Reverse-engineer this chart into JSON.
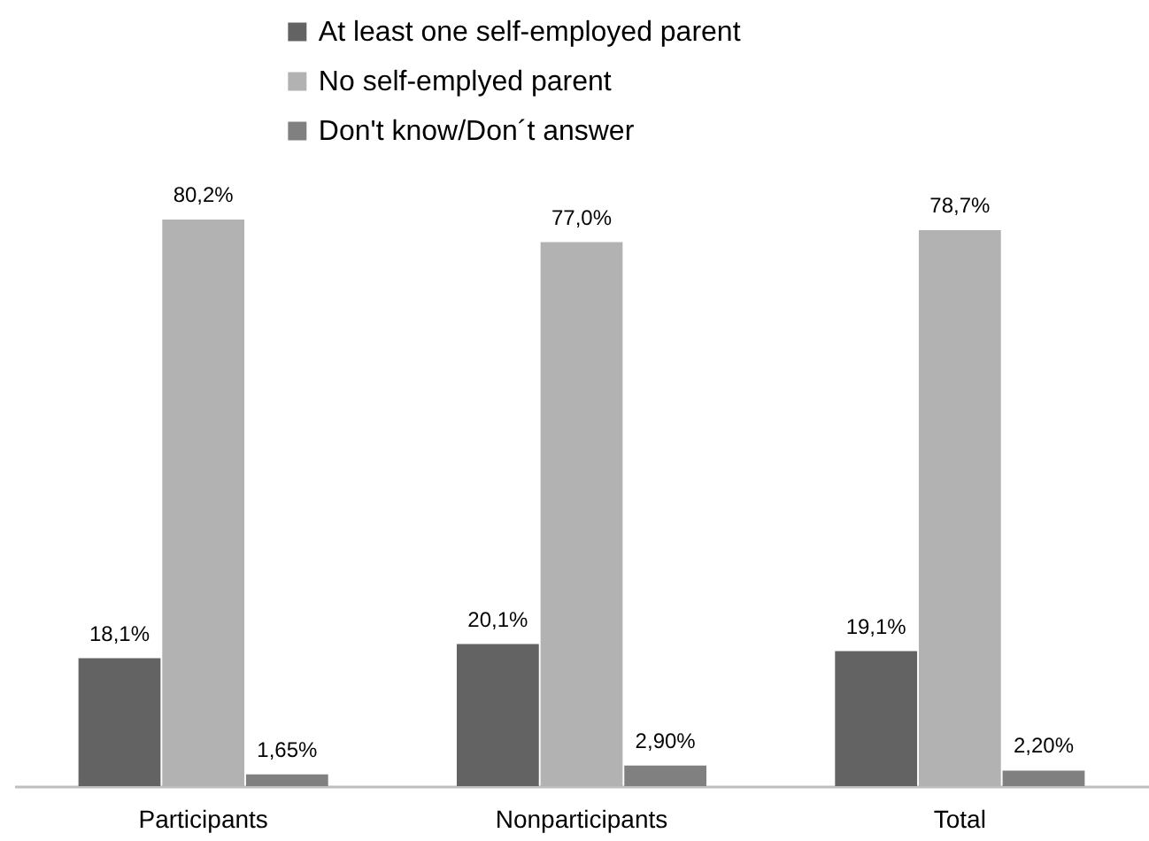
{
  "chart_data": {
    "type": "bar",
    "categories": [
      "Participants",
      "Nonparticipants",
      "Total"
    ],
    "series": [
      {
        "name": "At least one self-employed parent",
        "color": "#636363",
        "values": [
          18.1,
          20.1,
          19.1
        ],
        "value_labels": [
          "18,1%",
          "20,1%",
          "19,1%"
        ]
      },
      {
        "name": "No self-emplyed parent",
        "color": "#b2b2b2",
        "values": [
          80.2,
          77.0,
          78.7
        ],
        "value_labels": [
          "80,2%",
          "77,0%",
          "78,7%"
        ]
      },
      {
        "name": "Don't know/Don´t answer",
        "color": "#808080",
        "values": [
          1.65,
          2.9,
          2.2
        ],
        "value_labels": [
          "1,65%",
          "2,90%",
          "2,20%"
        ]
      }
    ],
    "legend": "top"
  }
}
